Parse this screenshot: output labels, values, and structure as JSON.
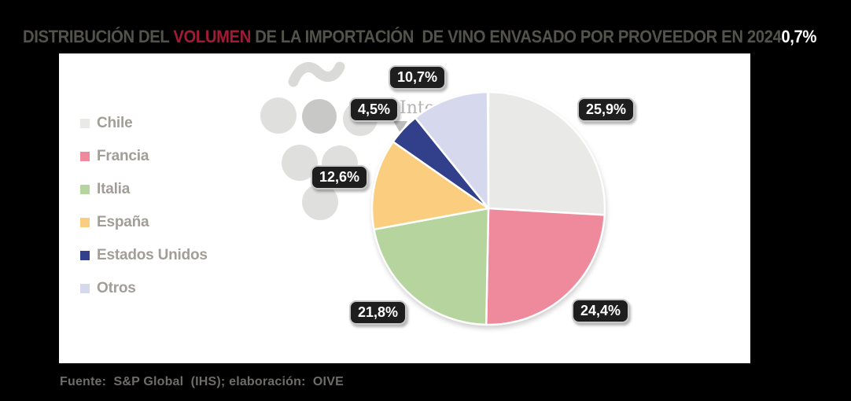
{
  "title": {
    "part1": "DISTRIBUCIÓN DEL ",
    "highlight": "VOLUMEN",
    "part2": " DE LA IMPORTACIÓN  DE VINO ENVASADO POR PROVEEDOR EN 2024",
    "overlay_value": "0,7%",
    "color": "#54534B",
    "highlight_color": "#A31A35",
    "overlay_color": "#FFFFFF"
  },
  "chart_data": {
    "type": "pie",
    "title": "Distribución del volumen de la importación de vino envasado por proveedor en 2024",
    "unit": "%",
    "legend_position": "left",
    "start_angle_deg": -90,
    "direction": "clockwise",
    "slices": [
      {
        "name": "Chile",
        "value": 25.9,
        "label": "25,9%",
        "color": "#E9E9E7"
      },
      {
        "name": "Francia",
        "value": 24.4,
        "label": "24,4%",
        "color": "#EE8A9C"
      },
      {
        "name": "Italia",
        "value": 21.8,
        "label": "21,8%",
        "color": "#B5D49E"
      },
      {
        "name": "España",
        "value": 12.6,
        "label": "12,6%",
        "color": "#FACE7E"
      },
      {
        "name": "Estados Unidos",
        "value": 4.5,
        "label": "4,5%",
        "color": "#32408C"
      },
      {
        "name": "Otros",
        "value": 10.7,
        "label": "10,7%",
        "color": "#D6D9EE"
      }
    ],
    "extra_value_label": "0,7%"
  },
  "watermark": {
    "text_fragment": "Inte"
  },
  "footer": {
    "text": "Fuente:  S&P Global  (IHS); elaboración:  OIVE"
  },
  "colors": {
    "background": "#000000",
    "panel": "#FFFFFF",
    "legend_text": "#A19E98",
    "label_box_bg": "#1E1E1E",
    "label_box_border": "#C8C8C8",
    "footer_text": "#6F6D68"
  }
}
